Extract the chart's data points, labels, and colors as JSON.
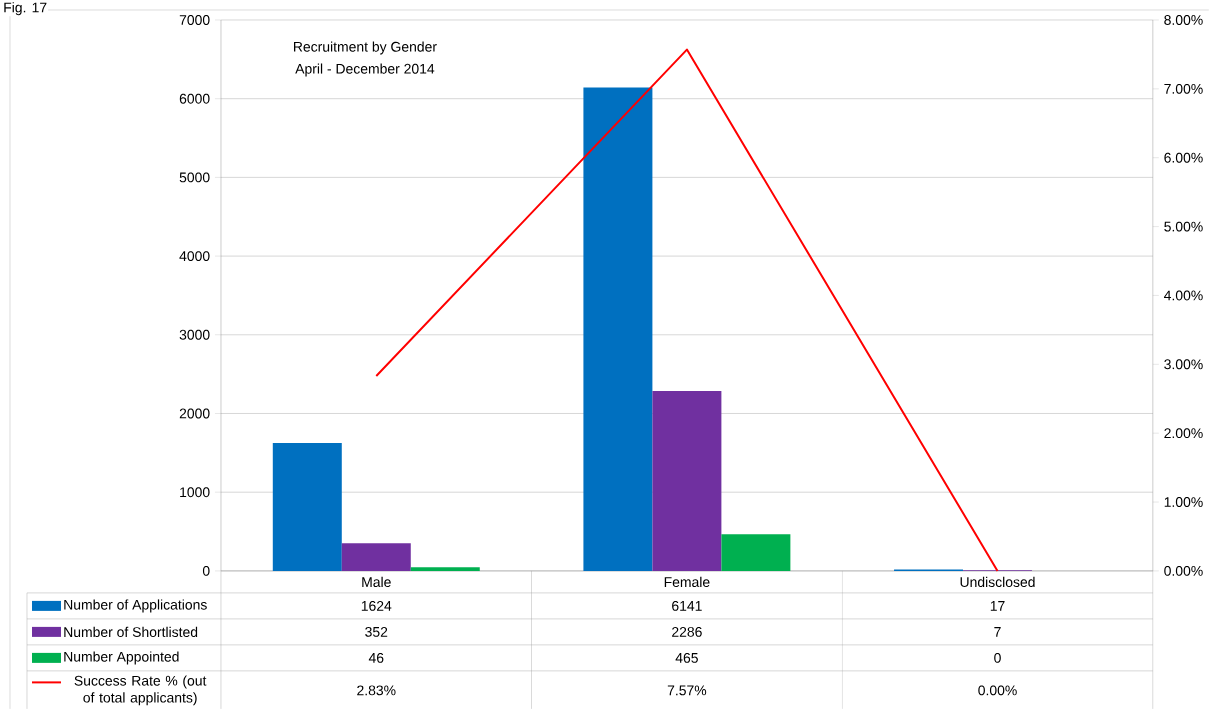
{
  "chart_data": {
    "type": "bar",
    "title": "Recruitment by Gender",
    "subtitle": "April - December 2014",
    "annotations": [
      "Fig. 17"
    ],
    "categories": [
      "Male",
      "Female",
      "Undisclosed"
    ],
    "series": [
      {
        "name": "Number of Applications",
        "color": "#0070c0",
        "values": [
          1624,
          6141,
          17
        ]
      },
      {
        "name": "Number of Shortlisted",
        "color": "#7030a0",
        "values": [
          352,
          2286,
          7
        ]
      },
      {
        "name": "Number Appointed",
        "color": "#00b050",
        "values": [
          46,
          465,
          0
        ]
      },
      {
        "name": "Success Rate % (out of total applicants)",
        "type": "line",
        "axis": "y2",
        "color": "#ff0000",
        "values": [
          2.83,
          7.57,
          0.0
        ],
        "value_labels": [
          "2.83%",
          "7.57%",
          "0.00%"
        ]
      }
    ],
    "ylim": [
      0,
      7000
    ],
    "yticks": [
      0,
      1000,
      2000,
      3000,
      4000,
      5000,
      6000,
      7000
    ],
    "y2lim": [
      0,
      8
    ],
    "y2ticks": [
      {
        "value": 0,
        "label": "0.00%"
      },
      {
        "value": 1,
        "label": "1.00%"
      },
      {
        "value": 2,
        "label": "2.00%"
      },
      {
        "value": 3,
        "label": "3.00%"
      },
      {
        "value": 4,
        "label": "4.00%"
      },
      {
        "value": 5,
        "label": "5.00%"
      },
      {
        "value": 6,
        "label": "6.00%"
      },
      {
        "value": 7,
        "label": "7.00%"
      },
      {
        "value": 8,
        "label": "8.00%"
      }
    ],
    "grid": "y",
    "legend": "bottom left",
    "data_labels": true,
    "marker": "none",
    "line_style": "solid"
  }
}
